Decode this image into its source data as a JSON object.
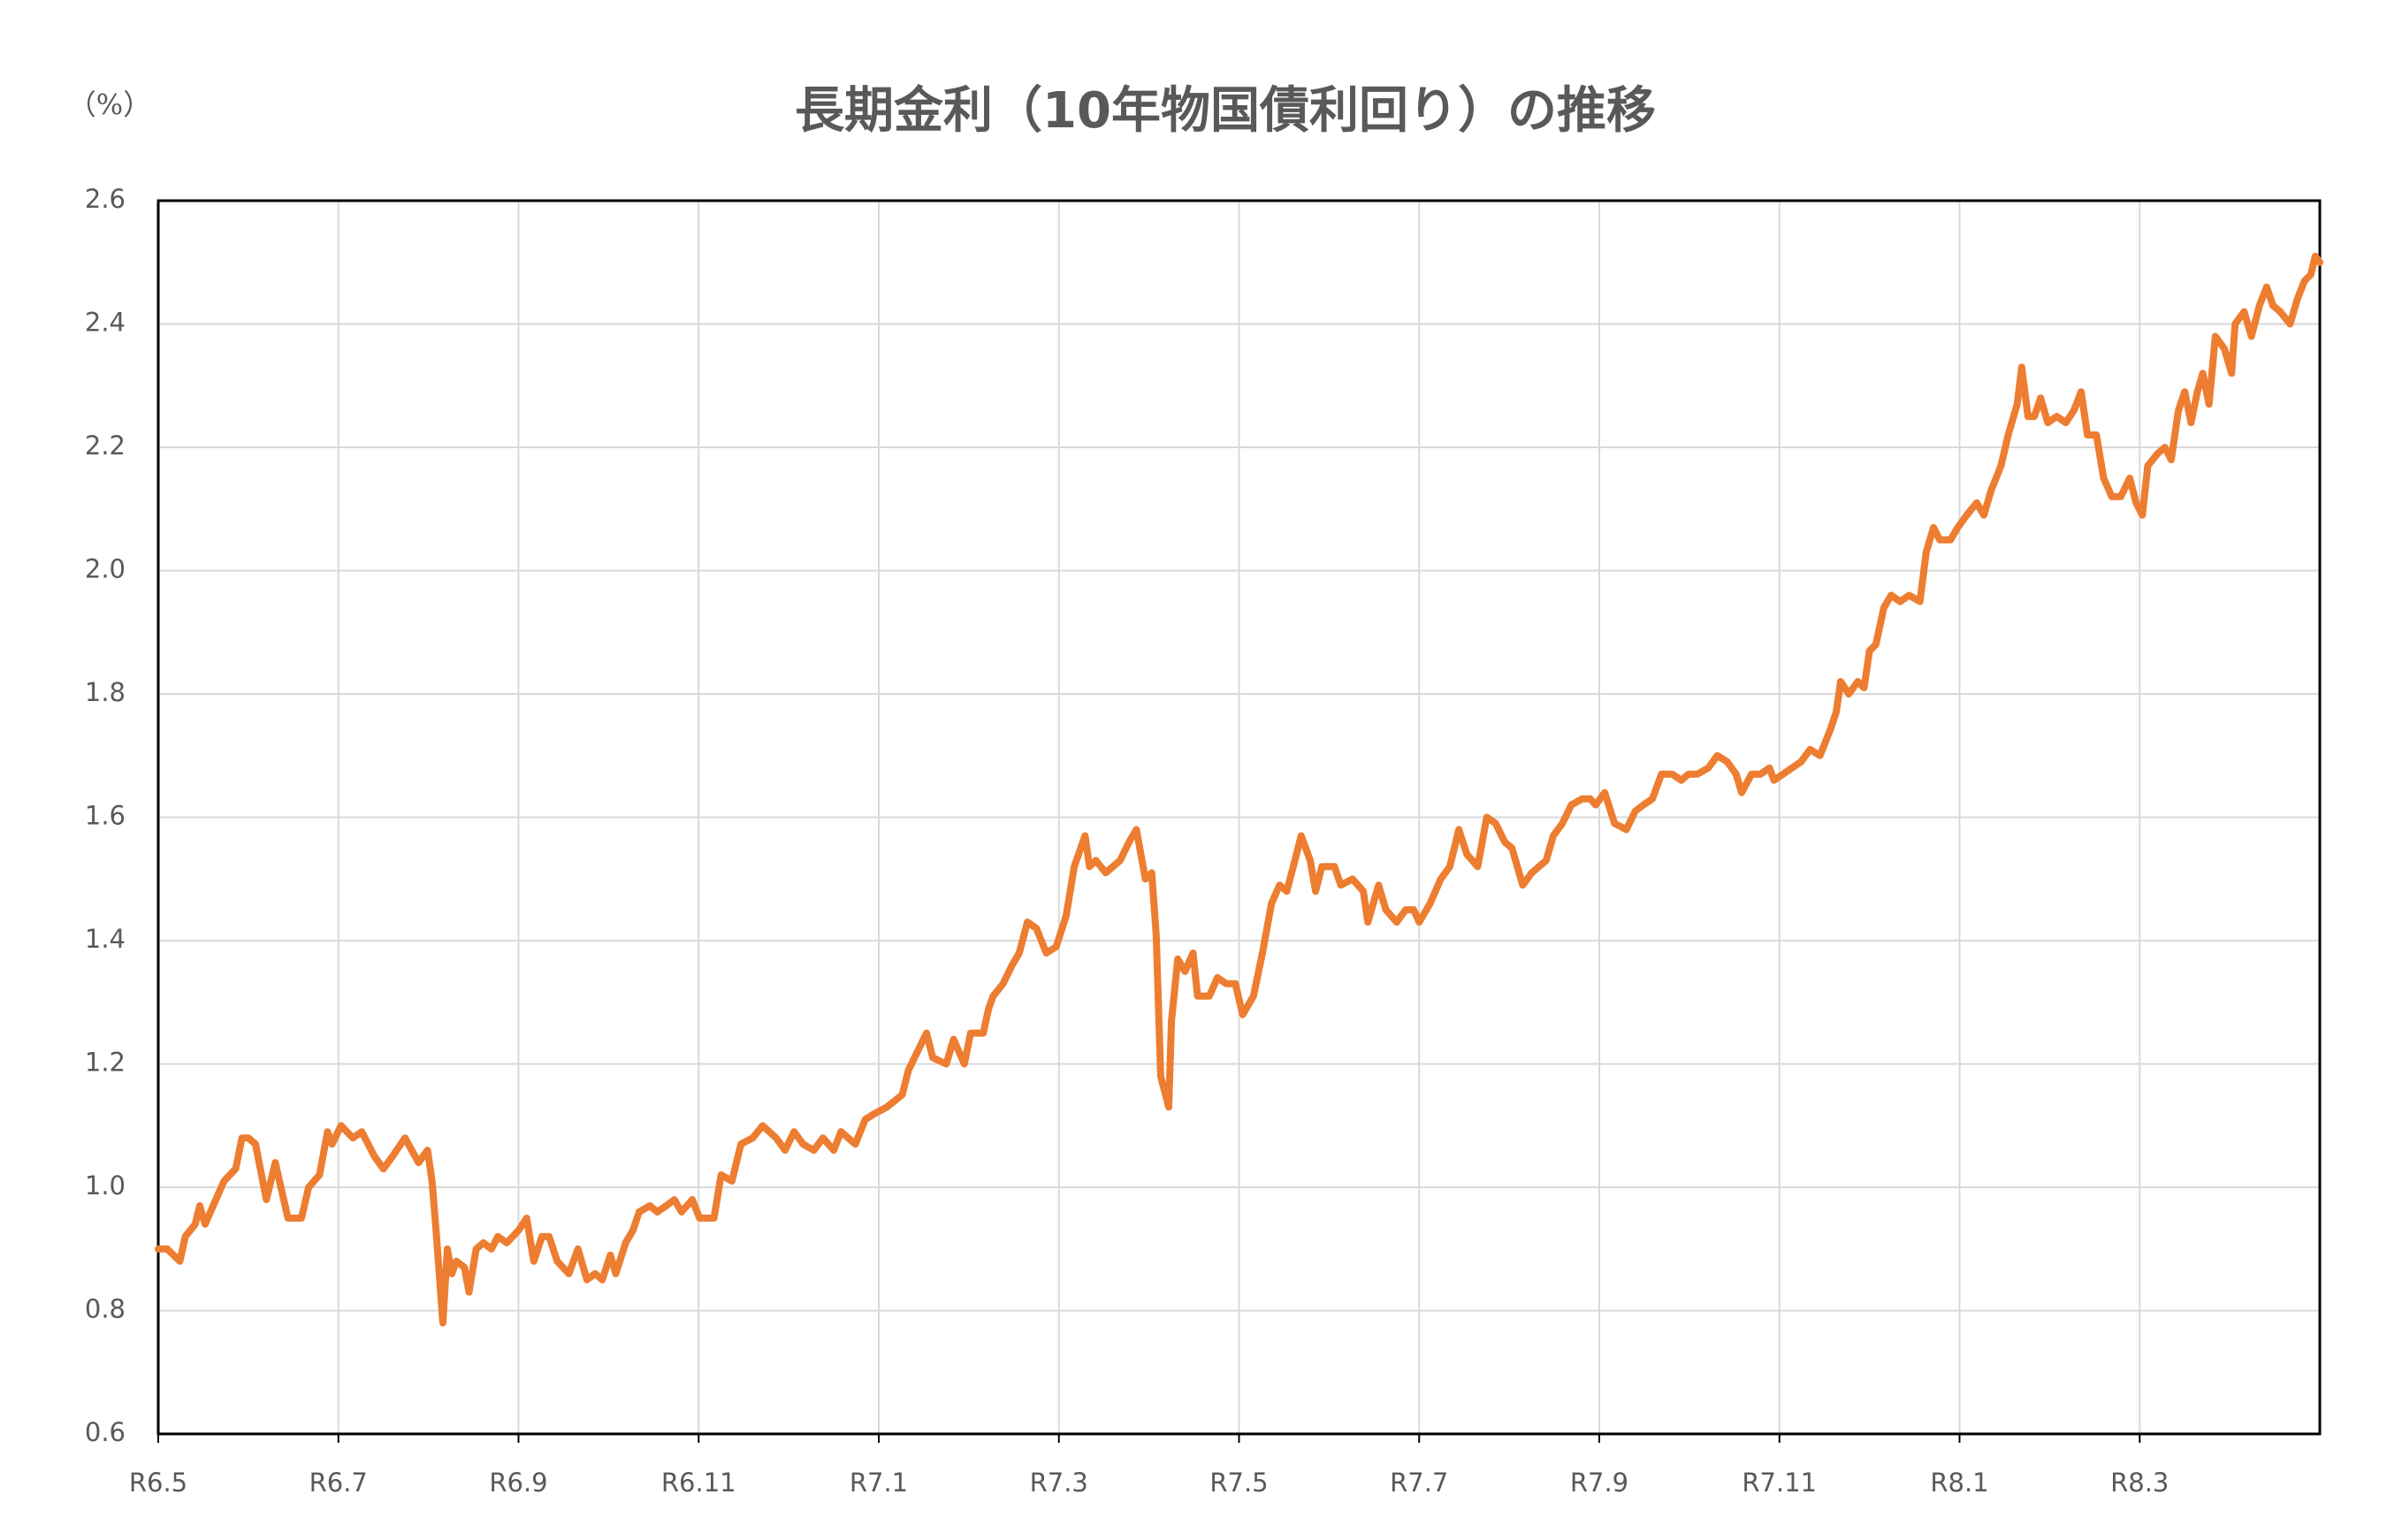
{
  "chart_data": {
    "type": "line",
    "title": "長期金利（10年物国債利回り）の推移",
    "y_label": "（%）",
    "color": "#ed7d31",
    "grid": true,
    "xlim": [
      0,
      24
    ],
    "xticks": [
      {
        "value": 0,
        "label": "R6.5"
      },
      {
        "value": 2,
        "label": "R6.7"
      },
      {
        "value": 4,
        "label": "R6.9"
      },
      {
        "value": 6,
        "label": "R6.11"
      },
      {
        "value": 8,
        "label": "R7.1"
      },
      {
        "value": 10,
        "label": "R7.3"
      },
      {
        "value": 12,
        "label": "R7.5"
      },
      {
        "value": 14,
        "label": "R7.7"
      },
      {
        "value": 16,
        "label": "R7.9"
      },
      {
        "value": 18,
        "label": "R7.11"
      },
      {
        "value": 20,
        "label": "R8.1"
      },
      {
        "value": 22,
        "label": "R8.3"
      }
    ],
    "ylim": [
      0.6,
      2.6
    ],
    "yticks": [
      0.6,
      0.8,
      {
        "value": 1.0,
        "label": "1.0"
      },
      1.2,
      1.4,
      1.6,
      1.8,
      {
        "value": 2.0,
        "label": "2.0"
      },
      2.2,
      2.4,
      2.6
    ],
    "x": [
      0,
      0.1,
      0.24,
      0.3,
      0.41,
      0.46,
      0.52,
      0.61,
      0.73,
      0.86,
      0.93,
      1.0,
      1.08,
      1.2,
      1.3,
      1.44,
      1.59,
      1.67,
      1.79,
      1.88,
      1.93,
      2.03,
      2.16,
      2.26,
      2.4,
      2.5,
      2.6,
      2.74,
      2.89,
      2.99,
      3.04,
      3.09,
      3.16,
      3.21,
      3.26,
      3.31,
      3.4,
      3.45,
      3.53,
      3.61,
      3.7,
      3.77,
      3.87,
      4.0,
      4.09,
      4.17,
      4.26,
      4.34,
      4.43,
      4.56,
      4.66,
      4.76,
      4.85,
      4.93,
      5.02,
      5.08,
      5.19,
      5.27,
      5.34,
      5.46,
      5.54,
      5.64,
      5.73,
      5.81,
      5.93,
      6.01,
      6.17,
      6.25,
      6.37,
      6.47,
      6.6,
      6.71,
      6.86,
      6.96,
      7.06,
      7.16,
      7.28,
      7.38,
      7.5,
      7.58,
      7.74,
      7.85,
      7.96,
      8.09,
      8.26,
      8.33,
      8.43,
      8.53,
      8.6,
      8.75,
      8.83,
      8.95,
      9.02,
      9.16,
      9.22,
      9.27,
      9.38,
      9.48,
      9.56,
      9.65,
      9.75,
      9.86,
      9.97,
      10.08,
      10.17,
      10.29,
      10.34,
      10.41,
      10.52,
      10.68,
      10.78,
      10.86,
      10.96,
      11.03,
      11.08,
      11.13,
      11.22,
      11.25,
      11.32,
      11.4,
      11.49,
      11.54,
      11.67,
      11.76,
      11.86,
      11.96,
      12.04,
      12.16,
      12.26,
      12.36,
      12.45,
      12.53,
      12.62,
      12.69,
      12.79,
      12.85,
      12.92,
      13.06,
      13.13,
      13.26,
      13.38,
      13.43,
      13.55,
      13.63,
      13.75,
      13.85,
      13.94,
      14.0,
      14.12,
      14.24,
      14.34,
      14.44,
      14.53,
      14.65,
      14.75,
      14.85,
      14.95,
      15.03,
      15.15,
      15.25,
      15.41,
      15.49,
      15.59,
      15.69,
      15.81,
      15.9,
      15.96,
      16.06,
      16.17,
      16.3,
      16.4,
      16.49,
      16.59,
      16.69,
      16.81,
      16.91,
      16.99,
      17.09,
      17.21,
      17.31,
      17.42,
      17.52,
      17.58,
      17.69,
      17.79,
      17.89,
      17.94,
      18.04,
      18.14,
      18.24,
      18.34,
      18.45,
      18.56,
      18.63,
      18.68,
      18.77,
      18.87,
      18.94,
      19.0,
      19.07,
      19.16,
      19.24,
      19.34,
      19.44,
      19.56,
      19.63,
      19.71,
      19.78,
      19.9,
      19.98,
      20.08,
      20.19,
      20.27,
      20.35,
      20.46,
      20.54,
      20.64,
      20.69,
      20.76,
      20.83,
      20.9,
      20.98,
      21.08,
      21.18,
      21.27,
      21.35,
      21.42,
      21.52,
      21.6,
      21.69,
      21.79,
      21.89,
      21.96,
      22.03,
      22.09,
      22.2,
      22.28,
      22.35,
      22.43,
      22.5,
      22.57,
      22.64,
      22.7,
      22.77,
      22.84,
      22.94,
      23.02,
      23.06,
      23.16,
      23.24,
      23.33,
      23.41,
      23.48,
      23.56,
      23.67,
      23.75,
      23.83,
      23.9,
      23.95,
      24
    ],
    "values": [
      0.9,
      0.9,
      0.88,
      0.92,
      0.94,
      0.97,
      0.94,
      0.97,
      1.01,
      1.03,
      1.08,
      1.08,
      1.07,
      0.98,
      1.04,
      0.95,
      0.95,
      1.0,
      1.02,
      1.09,
      1.07,
      1.1,
      1.08,
      1.09,
      1.05,
      1.03,
      1.05,
      1.08,
      1.04,
      1.06,
      1.01,
      0.92,
      0.78,
      0.9,
      0.86,
      0.88,
      0.87,
      0.83,
      0.9,
      0.91,
      0.9,
      0.92,
      0.91,
      0.93,
      0.95,
      0.88,
      0.92,
      0.92,
      0.88,
      0.86,
      0.9,
      0.85,
      0.86,
      0.85,
      0.89,
      0.86,
      0.91,
      0.93,
      0.96,
      0.97,
      0.96,
      0.97,
      0.98,
      0.96,
      0.98,
      0.95,
      0.95,
      1.02,
      1.01,
      1.07,
      1.08,
      1.1,
      1.08,
      1.06,
      1.09,
      1.07,
      1.06,
      1.08,
      1.06,
      1.09,
      1.07,
      1.11,
      1.12,
      1.13,
      1.15,
      1.19,
      1.22,
      1.25,
      1.21,
      1.2,
      1.24,
      1.2,
      1.25,
      1.25,
      1.29,
      1.31,
      1.33,
      1.36,
      1.38,
      1.43,
      1.42,
      1.38,
      1.39,
      1.44,
      1.52,
      1.57,
      1.52,
      1.53,
      1.51,
      1.53,
      1.56,
      1.58,
      1.5,
      1.51,
      1.41,
      1.18,
      1.13,
      1.27,
      1.37,
      1.35,
      1.38,
      1.31,
      1.31,
      1.34,
      1.33,
      1.33,
      1.28,
      1.31,
      1.38,
      1.46,
      1.49,
      1.48,
      1.53,
      1.57,
      1.53,
      1.48,
      1.52,
      1.52,
      1.49,
      1.5,
      1.48,
      1.43,
      1.49,
      1.45,
      1.43,
      1.45,
      1.45,
      1.43,
      1.46,
      1.5,
      1.52,
      1.58,
      1.54,
      1.52,
      1.6,
      1.59,
      1.56,
      1.55,
      1.49,
      1.51,
      1.53,
      1.57,
      1.59,
      1.62,
      1.63,
      1.63,
      1.62,
      1.64,
      1.59,
      1.58,
      1.61,
      1.62,
      1.63,
      1.67,
      1.67,
      1.66,
      1.67,
      1.67,
      1.68,
      1.7,
      1.69,
      1.67,
      1.64,
      1.67,
      1.67,
      1.68,
      1.66,
      1.67,
      1.68,
      1.69,
      1.71,
      1.7,
      1.74,
      1.77,
      1.82,
      1.8,
      1.82,
      1.81,
      1.87,
      1.88,
      1.94,
      1.96,
      1.95,
      1.96,
      1.95,
      2.03,
      2.07,
      2.05,
      2.05,
      2.07,
      2.09,
      2.11,
      2.09,
      2.13,
      2.17,
      2.22,
      2.27,
      2.33,
      2.25,
      2.25,
      2.28,
      2.24,
      2.25,
      2.24,
      2.26,
      2.29,
      2.22,
      2.22,
      2.15,
      2.12,
      2.12,
      2.15,
      2.11,
      2.09,
      2.17,
      2.19,
      2.2,
      2.18,
      2.26,
      2.29,
      2.24,
      2.29,
      2.32,
      2.27,
      2.38,
      2.36,
      2.32,
      2.4,
      2.42,
      2.38,
      2.43,
      2.46,
      2.43,
      2.42,
      2.4,
      2.44,
      2.47,
      2.48,
      2.51,
      2.5
    ]
  }
}
